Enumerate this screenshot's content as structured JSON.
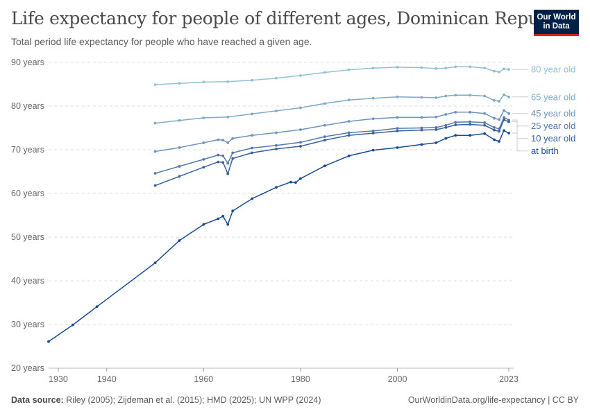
{
  "header": {
    "title": "Life expectancy for people of different ages, Dominican Republic",
    "subtitle": "Total period life expectancy for people who have reached a given age.",
    "logo_line1": "Our World",
    "logo_line2": "in Data"
  },
  "footer": {
    "source_label": "Data source:",
    "source_text": "Riley (2005); Zijdeman et al. (2015); HMD (2025); UN WPP (2024)",
    "credit": "OurWorldinData.org/life-expectancy | CC BY"
  },
  "chart_data": {
    "type": "line",
    "title": "Life expectancy for people of different ages, Dominican Republic",
    "xlim": [
      1928,
      2024
    ],
    "ylim": [
      20,
      90
    ],
    "x_ticks": [
      1930,
      1940,
      1960,
      1980,
      2000,
      2023
    ],
    "y_ticks": [
      {
        "value": 20,
        "label": "20 years"
      },
      {
        "value": 30,
        "label": "30 years"
      },
      {
        "value": 40,
        "label": "40 years"
      },
      {
        "value": 50,
        "label": "50 years"
      },
      {
        "value": 60,
        "label": "60 years"
      },
      {
        "value": 70,
        "label": "70 years"
      },
      {
        "value": 80,
        "label": "80 years"
      },
      {
        "value": 90,
        "label": "90 years"
      }
    ],
    "grid": "horizontal-dashed",
    "legend": "right-end-labels",
    "series": [
      {
        "name": "80 year old",
        "color": "#92c1d3",
        "x": [
          1950,
          1955,
          1960,
          1965,
          1970,
          1975,
          1980,
          1985,
          1990,
          1995,
          2000,
          2005,
          2008,
          2010,
          2012,
          2015,
          2018,
          2020,
          2021,
          2022,
          2023
        ],
        "y": [
          84.9,
          85.2,
          85.5,
          85.6,
          85.9,
          86.4,
          87.0,
          87.7,
          88.3,
          88.7,
          88.9,
          88.8,
          88.6,
          88.7,
          89.0,
          89.0,
          88.7,
          88.0,
          87.8,
          88.5,
          88.4
        ]
      },
      {
        "name": "65 year old",
        "color": "#7eaac8",
        "x": [
          1950,
          1955,
          1960,
          1965,
          1970,
          1975,
          1980,
          1985,
          1990,
          1995,
          2000,
          2005,
          2008,
          2010,
          2012,
          2015,
          2018,
          2020,
          2021,
          2022,
          2023
        ],
        "y": [
          76.1,
          76.7,
          77.3,
          77.5,
          78.2,
          78.9,
          79.6,
          80.6,
          81.4,
          81.8,
          82.1,
          82.0,
          81.9,
          82.3,
          82.5,
          82.5,
          82.3,
          81.3,
          81.1,
          82.6,
          82.1
        ]
      },
      {
        "name": "45 year old",
        "color": "#6f93bd",
        "x": [
          1950,
          1955,
          1960,
          1963,
          1964,
          1965,
          1966,
          1970,
          1975,
          1980,
          1985,
          1990,
          1995,
          2000,
          2005,
          2008,
          2010,
          2012,
          2015,
          2018,
          2020,
          2021,
          2022,
          2023
        ],
        "y": [
          69.6,
          70.5,
          71.6,
          72.3,
          72.2,
          71.6,
          72.6,
          73.3,
          73.9,
          74.6,
          75.6,
          76.5,
          77.1,
          77.4,
          77.4,
          77.5,
          78.1,
          78.6,
          78.6,
          78.3,
          77.2,
          76.9,
          79.0,
          78.3
        ]
      },
      {
        "name": "25 year old",
        "color": "#5478ac",
        "x": [
          1950,
          1955,
          1960,
          1963,
          1964,
          1965,
          1966,
          1970,
          1975,
          1980,
          1985,
          1990,
          1995,
          2000,
          2005,
          2008,
          2010,
          2012,
          2015,
          2018,
          2020,
          2021,
          2022,
          2023
        ],
        "y": [
          64.6,
          66.2,
          67.8,
          68.8,
          68.6,
          66.9,
          69.3,
          70.4,
          71.0,
          71.7,
          73.0,
          73.9,
          74.3,
          74.9,
          75.0,
          75.1,
          75.6,
          76.3,
          76.4,
          76.2,
          75.1,
          74.8,
          77.4,
          76.8
        ]
      },
      {
        "name": "10 year old",
        "color": "#3a5f9d",
        "x": [
          1950,
          1955,
          1960,
          1963,
          1964,
          1965,
          1966,
          1970,
          1975,
          1980,
          1985,
          1990,
          1995,
          2000,
          2005,
          2008,
          2010,
          2012,
          2015,
          2018,
          2020,
          2021,
          2022,
          2023
        ],
        "y": [
          61.8,
          63.9,
          66.0,
          67.2,
          67.1,
          64.5,
          68.0,
          69.3,
          70.2,
          70.8,
          72.2,
          73.3,
          73.8,
          74.3,
          74.5,
          74.6,
          75.1,
          75.7,
          75.8,
          75.6,
          74.5,
          74.2,
          76.9,
          76.4
        ]
      },
      {
        "name": "at birth",
        "color": "#1a4b8f",
        "x": [
          1928,
          1933,
          1938,
          1950,
          1955,
          1960,
          1963,
          1964,
          1965,
          1966,
          1970,
          1975,
          1978,
          1979,
          1980,
          1985,
          1990,
          1995,
          2000,
          2005,
          2008,
          2010,
          2012,
          2015,
          2018,
          2020,
          2021,
          2022,
          2023
        ],
        "y": [
          26.1,
          29.9,
          34.1,
          44.1,
          49.2,
          52.9,
          54.2,
          54.8,
          52.9,
          56.0,
          58.8,
          61.4,
          62.6,
          62.5,
          63.4,
          66.3,
          68.6,
          69.9,
          70.5,
          71.2,
          71.6,
          72.6,
          73.3,
          73.3,
          73.7,
          72.3,
          71.9,
          74.4,
          73.8
        ]
      }
    ]
  }
}
